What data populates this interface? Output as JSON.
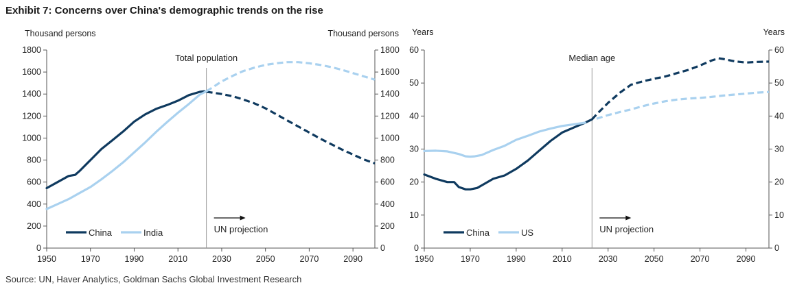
{
  "title": "Exhibit 7: Concerns over China's demographic trends on the rise",
  "source": "Source: UN, Haver Analytics, Goldman Sachs Global Investment Research",
  "colors": {
    "china": "#0f3a5f",
    "secondary": "#a9d1ef",
    "divider": "#999999",
    "axis": "#555555"
  },
  "chart_data": [
    {
      "type": "line",
      "title": "Total population",
      "ylabel_left": "Thousand persons",
      "ylabel_right": "Thousand persons",
      "ylim": [
        0,
        1800
      ],
      "yticks": [
        0,
        200,
        400,
        600,
        800,
        1000,
        1200,
        1400,
        1600,
        1800
      ],
      "xlim": [
        1950,
        2100
      ],
      "xticks": [
        1950,
        1970,
        1990,
        2010,
        2030,
        2050,
        2070,
        2090
      ],
      "projection_start": 2023,
      "annotation": "UN projection",
      "legend_position": "bottom-left",
      "grid": false,
      "series": [
        {
          "name": "China",
          "color_key": "china",
          "x": [
            1950,
            1955,
            1960,
            1963,
            1965,
            1970,
            1975,
            1980,
            1985,
            1990,
            1995,
            2000,
            2005,
            2010,
            2015,
            2020,
            2022,
            2023,
            2025,
            2030,
            2035,
            2040,
            2045,
            2050,
            2055,
            2060,
            2065,
            2070,
            2075,
            2080,
            2085,
            2090,
            2095,
            2100
          ],
          "y": [
            545,
            600,
            655,
            665,
            700,
            800,
            900,
            980,
            1060,
            1150,
            1215,
            1265,
            1300,
            1340,
            1390,
            1420,
            1425,
            1420,
            1415,
            1400,
            1380,
            1350,
            1315,
            1270,
            1215,
            1160,
            1105,
            1050,
            995,
            945,
            895,
            850,
            805,
            770
          ]
        },
        {
          "name": "India",
          "color_key": "secondary",
          "x": [
            1950,
            1955,
            1960,
            1965,
            1970,
            1975,
            1980,
            1985,
            1990,
            1995,
            2000,
            2005,
            2010,
            2015,
            2020,
            2023,
            2025,
            2030,
            2035,
            2040,
            2045,
            2050,
            2055,
            2060,
            2065,
            2070,
            2075,
            2080,
            2085,
            2090,
            2095,
            2100
          ],
          "y": [
            355,
            400,
            445,
            500,
            555,
            625,
            700,
            780,
            870,
            960,
            1055,
            1145,
            1230,
            1310,
            1395,
            1425,
            1450,
            1515,
            1565,
            1610,
            1640,
            1665,
            1680,
            1690,
            1690,
            1680,
            1665,
            1645,
            1620,
            1590,
            1560,
            1530
          ]
        }
      ]
    },
    {
      "type": "line",
      "title": "Median age",
      "ylabel_left": "Years",
      "ylabel_right": "Years",
      "ylim": [
        0,
        60
      ],
      "yticks": [
        0,
        10,
        20,
        30,
        40,
        50,
        60
      ],
      "xlim": [
        1950,
        2100
      ],
      "xticks": [
        1950,
        1970,
        1990,
        2010,
        2030,
        2050,
        2070,
        2090
      ],
      "projection_start": 2023,
      "annotation": "UN projection",
      "legend_position": "bottom-left",
      "grid": false,
      "series": [
        {
          "name": "China",
          "color_key": "china",
          "x": [
            1950,
            1955,
            1960,
            1963,
            1965,
            1968,
            1970,
            1973,
            1975,
            1980,
            1985,
            1990,
            1995,
            2000,
            2005,
            2010,
            2015,
            2020,
            2023,
            2025,
            2030,
            2035,
            2040,
            2045,
            2050,
            2055,
            2060,
            2065,
            2070,
            2075,
            2078,
            2080,
            2085,
            2090,
            2095,
            2100
          ],
          "y": [
            22.3,
            21,
            20,
            20,
            18.5,
            17.8,
            17.8,
            18.2,
            19,
            21,
            22,
            24,
            26.5,
            29.5,
            32.5,
            35,
            36.5,
            38,
            39,
            40.5,
            44,
            47,
            49.5,
            50.5,
            51.3,
            52,
            53,
            54,
            55.3,
            56.8,
            57.5,
            57.3,
            56.6,
            56.2,
            56.4,
            56.5
          ]
        },
        {
          "name": "US",
          "color_key": "secondary",
          "x": [
            1950,
            1955,
            1960,
            1965,
            1968,
            1970,
            1972,
            1975,
            1980,
            1985,
            1990,
            1995,
            2000,
            2005,
            2010,
            2015,
            2020,
            2025,
            2030,
            2035,
            2040,
            2045,
            2050,
            2055,
            2060,
            2065,
            2070,
            2075,
            2080,
            2085,
            2090,
            2095,
            2100
          ],
          "y": [
            29.4,
            29.5,
            29.3,
            28.5,
            27.8,
            27.7,
            27.8,
            28.2,
            29.7,
            31,
            32.8,
            34,
            35.3,
            36.2,
            37,
            37.5,
            38,
            39.2,
            40.3,
            41.2,
            42,
            43,
            43.8,
            44.5,
            45,
            45.3,
            45.5,
            45.8,
            46.2,
            46.5,
            46.8,
            47.1,
            47.3
          ]
        }
      ]
    }
  ]
}
